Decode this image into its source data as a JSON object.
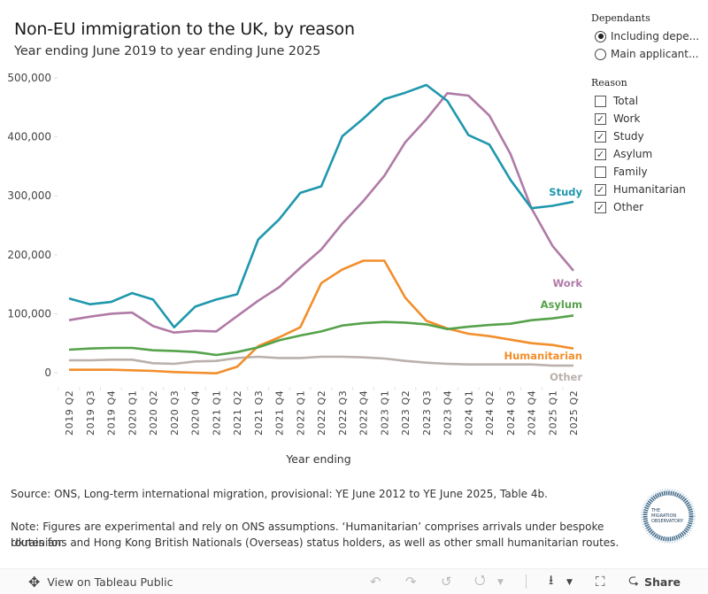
{
  "header": {
    "title": "Non-EU immigration to the UK, by reason",
    "subtitle": "Year ending June 2019 to year ending June 2025"
  },
  "filters": {
    "dependants": {
      "heading": "Dependants",
      "options": [
        {
          "label": "Including depe...",
          "selected": true
        },
        {
          "label": "Main applicant...",
          "selected": false
        }
      ]
    },
    "reason": {
      "heading": "Reason",
      "options": [
        {
          "label": "Total",
          "checked": false
        },
        {
          "label": "Work",
          "checked": true
        },
        {
          "label": "Study",
          "checked": true
        },
        {
          "label": "Asylum",
          "checked": true
        },
        {
          "label": "Family",
          "checked": false
        },
        {
          "label": "Humanitarian",
          "checked": true
        },
        {
          "label": "Other",
          "checked": true
        }
      ]
    }
  },
  "chart_data": {
    "type": "line",
    "title": "Non-EU immigration to the UK, by reason",
    "subtitle": "Year ending June 2019 to year ending June 2025",
    "xlabel": "Year ending",
    "ylabel": "",
    "ylim": [
      0,
      500000
    ],
    "yticks": [
      0,
      100000,
      200000,
      300000,
      400000,
      500000
    ],
    "ytick_labels": [
      "0",
      "100,000",
      "200,000",
      "300,000",
      "400,000",
      "500,000"
    ],
    "grid": false,
    "legend": "direct labels at line ends (right)",
    "categories": [
      "2019 Q2",
      "2019 Q3",
      "2019 Q4",
      "2020 Q1",
      "2020 Q2",
      "2020 Q3",
      "2020 Q4",
      "2021 Q1",
      "2021 Q2",
      "2021 Q3",
      "2021 Q4",
      "2022 Q1",
      "2022 Q2",
      "2022 Q3",
      "2022 Q4",
      "2023 Q1",
      "2023 Q2",
      "2023 Q3",
      "2023 Q4",
      "2024 Q1",
      "2024 Q2",
      "2024 Q3",
      "2024 Q4",
      "2025 Q1",
      "2025 Q2"
    ],
    "series": [
      {
        "name": "Study",
        "color": "#1f97ad",
        "values": [
          126000,
          116000,
          120000,
          135000,
          124000,
          77000,
          112000,
          124000,
          133000,
          226000,
          260000,
          305000,
          316000,
          401000,
          431000,
          464000,
          475000,
          488000,
          461000,
          403000,
          387000,
          327000,
          279000,
          283000,
          290000
        ]
      },
      {
        "name": "Work",
        "color": "#b07aa6",
        "values": [
          89000,
          95000,
          100000,
          102000,
          79000,
          68000,
          71000,
          70000,
          96000,
          122000,
          145000,
          178000,
          209000,
          253000,
          291000,
          334000,
          391000,
          430000,
          474000,
          470000,
          436000,
          371000,
          279000,
          215000,
          173000
        ]
      },
      {
        "name": "Asylum",
        "color": "#55a24a",
        "values": [
          39000,
          41000,
          42000,
          42000,
          38000,
          37000,
          35000,
          30000,
          35000,
          43000,
          55000,
          63000,
          70000,
          80000,
          84000,
          86000,
          85000,
          82000,
          74000,
          78000,
          81000,
          83000,
          89000,
          92000,
          97000
        ]
      },
      {
        "name": "Humanitarian",
        "color": "#f28e2b",
        "values": [
          5000,
          5000,
          5000,
          4000,
          3000,
          1000,
          0,
          -1000,
          10000,
          45000,
          60000,
          77000,
          152000,
          175000,
          190000,
          190000,
          127000,
          88000,
          75000,
          66000,
          62000,
          56000,
          50000,
          47000,
          41000
        ]
      },
      {
        "name": "Other",
        "color": "#bab0ac",
        "values": [
          21000,
          21000,
          22000,
          22000,
          16000,
          15000,
          19000,
          20000,
          25000,
          27000,
          25000,
          25000,
          27000,
          27000,
          26000,
          24000,
          20000,
          17000,
          15000,
          14000,
          14000,
          14000,
          14000,
          12000,
          12000
        ]
      }
    ]
  },
  "notes": {
    "source": "Source: ONS, Long-term international migration, provisional: YE June 2012 to YE June 2025, Table 4b.",
    "note_line1": "Note: Figures are experimental and rely on ONS assumptions. ‘Humanitarian’ comprises arrivals under bespoke routes for",
    "note_line2": "Ukrainians and Hong Kong British Nationals (Overseas) status holders, as well as other small humanitarian routes."
  },
  "logo": {
    "line1": "THE",
    "line2": "MIGRATION",
    "line3": "OBSERVATORY"
  },
  "footer": {
    "view_label": "View on Tableau Public",
    "share_label": "Share",
    "icons": {
      "tableau": "✥",
      "undo": "↶",
      "redo": "↷",
      "revert": "↺",
      "pause": "⭯",
      "download": "⭳",
      "fullscreen": "⛶",
      "share": "⮎"
    }
  }
}
